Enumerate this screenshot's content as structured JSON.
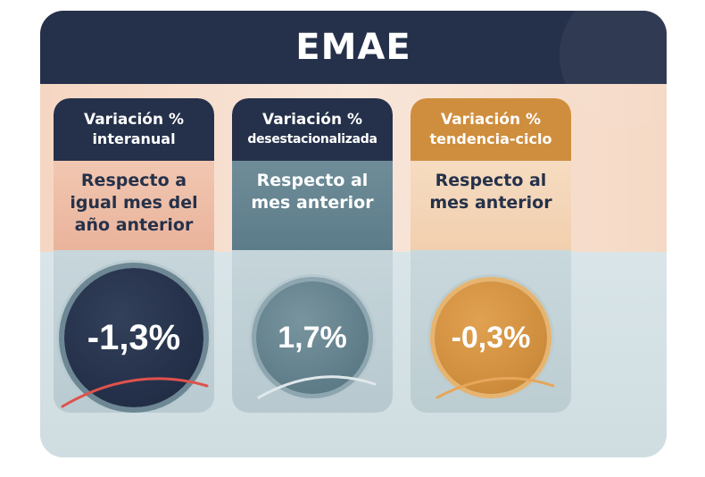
{
  "header": {
    "title": "EMAE"
  },
  "columns": [
    {
      "title_line1": "Variación %",
      "title_line2": "interanual",
      "description": "Respecto a igual mes del año anterior",
      "value": "-1,3%"
    },
    {
      "title_line1": "Variación %",
      "title_line2": "desestacionalizada",
      "description": "Respecto al mes anterior",
      "value": "1,7%"
    },
    {
      "title_line1": "Variación %",
      "title_line2": "tendencia-ciclo",
      "description": "Respecto al mes anterior",
      "value": "-0,3%"
    }
  ],
  "colors": {
    "navy": "#25314a",
    "slate": "#5e7c88",
    "orange": "#cf8e3d",
    "peach": "#eab39b",
    "accent_red": "#e0524c"
  }
}
